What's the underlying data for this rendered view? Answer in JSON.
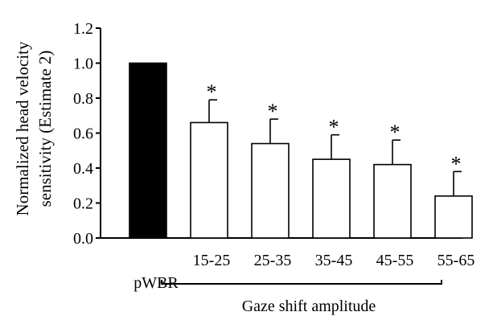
{
  "chart_data": {
    "type": "bar",
    "ylabel_lines": [
      "Normalized head velocity",
      "sensitivity (Estimate 2)"
    ],
    "xlabel": "Gaze shift amplitude",
    "ylim": [
      0,
      1.2
    ],
    "y_ticks": [
      "0.0",
      "0.2",
      "0.4",
      "0.6",
      "0.8",
      "1.0",
      "1.2"
    ],
    "categories": [
      "pWBR",
      "15-25",
      "25-35",
      "35-45",
      "45-55",
      "55-65"
    ],
    "values": [
      1.0,
      0.66,
      0.54,
      0.45,
      0.42,
      0.24
    ],
    "error_upper": [
      0,
      0.13,
      0.14,
      0.14,
      0.14,
      0.14
    ],
    "significance": [
      "",
      "*",
      "*",
      "*",
      "*",
      "*"
    ],
    "bar_fill": [
      "#000000",
      "#ffffff",
      "#ffffff",
      "#ffffff",
      "#ffffff",
      "#ffffff"
    ],
    "grid": false,
    "legend": "none"
  }
}
